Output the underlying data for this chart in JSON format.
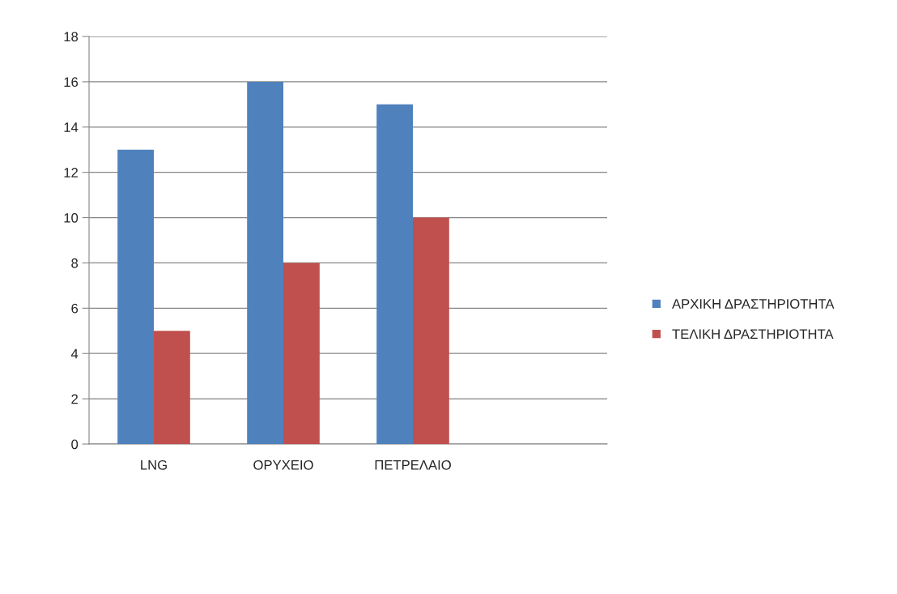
{
  "chart_data": {
    "type": "bar",
    "categories": [
      "LNG",
      "ΟΡΥΧΕΙΟ",
      "ΠΕΤΡΕΛΑΙΟ",
      null
    ],
    "series": [
      {
        "name": "ΑΡΧΙΚΗ ΔΡΑΣΤΗΡΙΟΤΗΤΑ",
        "color": "#4f81bd",
        "values": [
          13,
          16,
          15,
          null
        ]
      },
      {
        "name": "ΤΕΛΙΚΗ ΔΡΑΣΤΗΡΙΟΤΗΤΑ",
        "color": "#c0504d",
        "values": [
          5,
          8,
          10,
          null
        ]
      }
    ],
    "ylim": [
      0,
      18
    ],
    "yticks": [
      0,
      2,
      4,
      6,
      8,
      10,
      12,
      14,
      16,
      18
    ],
    "grid": "y",
    "legend": "right"
  }
}
